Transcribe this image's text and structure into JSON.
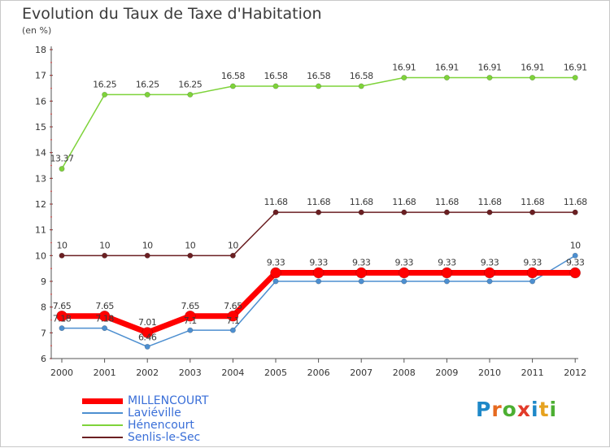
{
  "page": {
    "title": "Evolution du Taux de Taxe d'Habitation",
    "unit": "(en %)"
  },
  "brand": {
    "text": "Proxiti",
    "letters": [
      "P",
      "r",
      "o",
      "x",
      "i",
      "t",
      "i"
    ],
    "colors": [
      "#1e88c8",
      "#e66a1f",
      "#4caf32",
      "#e23b2a",
      "#1e88c8",
      "#e6a21f",
      "#4caf32"
    ]
  },
  "chart_data": {
    "type": "line",
    "title": "Evolution du Taux de Taxe d'Habitation",
    "ylabel": "(en %)",
    "xlabel": "",
    "ylim": [
      6,
      18
    ],
    "yticks": [
      6,
      7,
      8,
      9,
      10,
      11,
      12,
      13,
      14,
      15,
      16,
      17,
      18
    ],
    "grid": false,
    "legend_position": "bottom-left",
    "x": [
      2000,
      2001,
      2002,
      2003,
      2004,
      2005,
      2006,
      2007,
      2008,
      2009,
      2010,
      2011,
      2012
    ],
    "series": [
      {
        "name": "Senlis-le-Sec",
        "color": "#6b1f22",
        "values": [
          10,
          10,
          10,
          10,
          10,
          11.68,
          11.68,
          11.68,
          11.68,
          11.68,
          11.68,
          11.68,
          11.68
        ],
        "labels": [
          "10",
          "10",
          "10",
          "10",
          "10",
          "11.68",
          "11.68",
          "11.68",
          "11.68",
          "11.68",
          "11.68",
          "11.68",
          "11.68"
        ]
      },
      {
        "name": "Hénencourt",
        "color": "#7ed33a",
        "values": [
          13.37,
          16.25,
          16.25,
          16.25,
          16.58,
          16.58,
          16.58,
          16.58,
          16.91,
          16.91,
          16.91,
          16.91,
          16.91
        ],
        "labels": [
          "13.37",
          "16.25",
          "16.25",
          "16.25",
          "16.58",
          "16.58",
          "16.58",
          "16.58",
          "16.91",
          "16.91",
          "16.91",
          "16.91",
          "16.91"
        ]
      },
      {
        "name": "Laviéville",
        "color": "#4d8fd0",
        "values": [
          7.18,
          7.18,
          6.46,
          7.1,
          7.1,
          9,
          9,
          9,
          9,
          9,
          9,
          9,
          10
        ],
        "labels": [
          "7.18",
          "7.18",
          "6.46",
          "7.1",
          "7.1",
          "",
          "",
          "",
          "",
          "",
          "",
          "",
          "10"
        ]
      },
      {
        "name": "MILLENCOURT",
        "color": "#ff0000",
        "values": [
          7.65,
          7.65,
          7.01,
          7.65,
          7.65,
          9.33,
          9.33,
          9.33,
          9.33,
          9.33,
          9.33,
          9.33,
          9.33
        ],
        "labels": [
          "7.65",
          "7.65",
          "7.01",
          "7.65",
          "7.65",
          "9.33",
          "9.33",
          "9.33",
          "9.33",
          "9.33",
          "9.33",
          "9.33",
          "9.33"
        ]
      }
    ],
    "legend": [
      "MILLENCOURT",
      "Laviéville",
      "Hénencourt",
      "Senlis-le-Sec"
    ]
  }
}
